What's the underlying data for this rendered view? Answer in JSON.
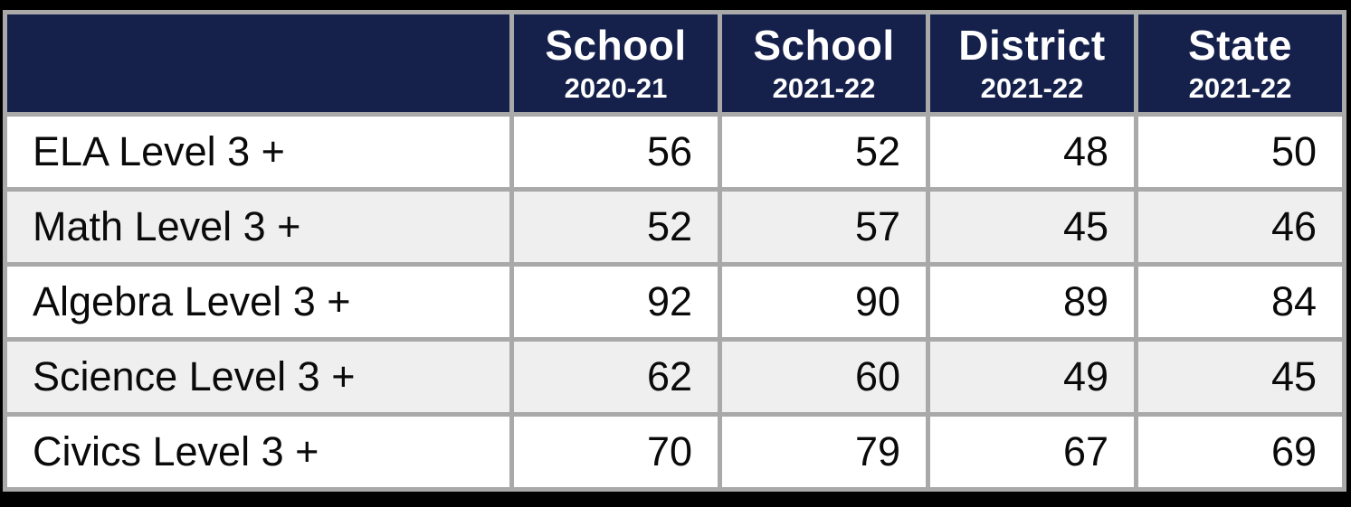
{
  "chart_data": {
    "type": "table",
    "columns": [
      {
        "title": "School",
        "year": "2020-21"
      },
      {
        "title": "School",
        "year": "2021-22"
      },
      {
        "title": "District",
        "year": "2021-22"
      },
      {
        "title": "State",
        "year": "2021-22"
      }
    ],
    "rows": [
      {
        "label": "ELA Level 3 +",
        "values": [
          "56",
          "52",
          "48",
          "50"
        ]
      },
      {
        "label": "Math Level 3 +",
        "values": [
          "52",
          "57",
          "45",
          "46"
        ]
      },
      {
        "label": "Algebra Level 3 +",
        "values": [
          "92",
          "90",
          "89",
          "84"
        ]
      },
      {
        "label": "Science Level 3 +",
        "values": [
          "62",
          "60",
          "49",
          "45"
        ]
      },
      {
        "label": "Civics Level 3 +",
        "values": [
          "70",
          "79",
          "67",
          "69"
        ]
      }
    ]
  },
  "colors": {
    "header_bg": "#15204b",
    "header_text": "#ffffff",
    "grid_line": "#a9a9a9",
    "row_bg": "#ffffff",
    "row_alt_bg": "#efefef",
    "body_text": "#0a0a0a",
    "frame_bg": "#000000"
  }
}
